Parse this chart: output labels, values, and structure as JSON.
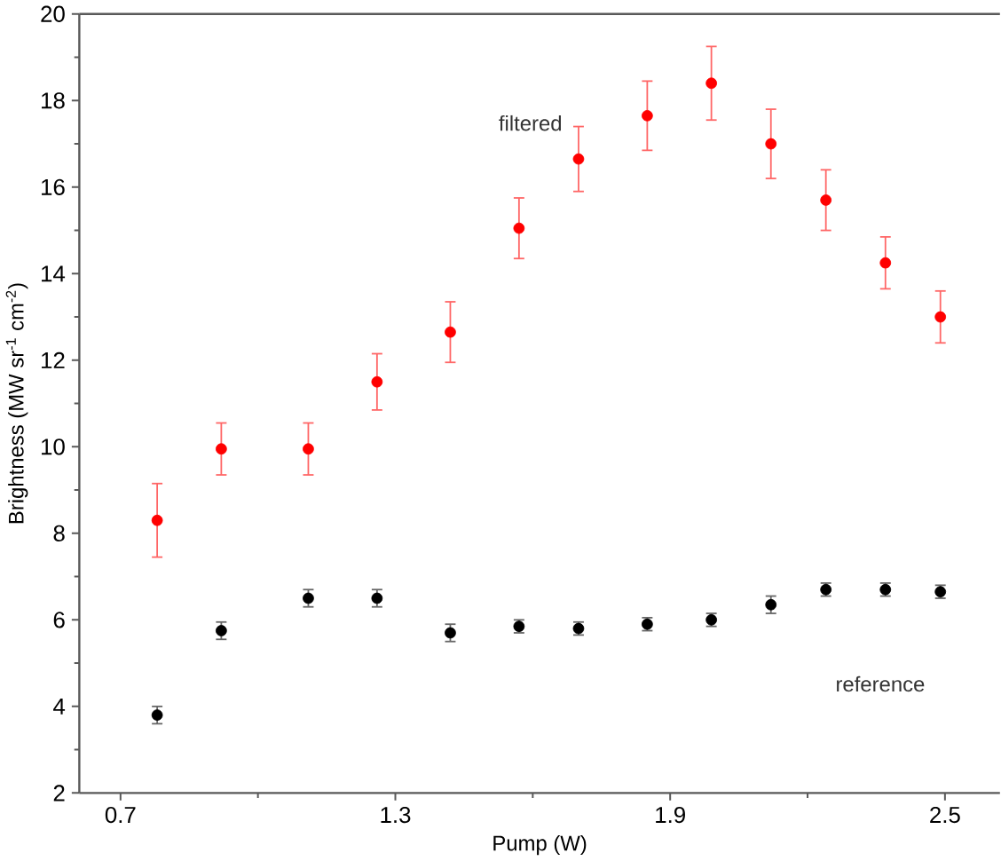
{
  "chart_data": {
    "type": "scatter",
    "xlabel": "Pump (W)",
    "ylabel": "Brightness (MW sr$^{-1}$ cm$^{-2}$)",
    "x": [
      0.78,
      0.92,
      1.11,
      1.26,
      1.42,
      1.57,
      1.7,
      1.85,
      1.99,
      2.12,
      2.24,
      2.37,
      2.49
    ],
    "series": [
      {
        "color": "#ff0000",
        "values": [
          8.3,
          9.95,
          9.95,
          11.5,
          12.65,
          15.05,
          16.65,
          17.65,
          18.4,
          17.0,
          15.7,
          14.25,
          13.0
        ],
        "errors": [
          0.85,
          0.6,
          0.6,
          0.65,
          0.7,
          0.7,
          0.75,
          0.8,
          0.85,
          0.8,
          0.7,
          0.6,
          0.6
        ]
      },
      {
        "color": "#000000",
        "values": [
          3.8,
          5.75,
          6.5,
          6.5,
          5.7,
          5.85,
          5.8,
          5.9,
          6.0,
          6.35,
          6.7,
          6.7,
          6.65
        ],
        "errors": [
          0.2,
          0.2,
          0.2,
          0.2,
          0.2,
          0.15,
          0.15,
          0.15,
          0.15,
          0.2,
          0.15,
          0.15,
          0.15
        ]
      }
    ],
    "annotations": [
      "filtered",
      "reference"
    ],
    "xlim": [
      0.61,
      2.62
    ],
    "ylim": [
      2,
      20
    ],
    "xticks": [
      0.7,
      1.3,
      1.9,
      2.5
    ],
    "yticks": [
      2,
      4,
      6,
      8,
      10,
      12,
      14,
      16,
      18,
      20
    ],
    "marker": "circle"
  }
}
